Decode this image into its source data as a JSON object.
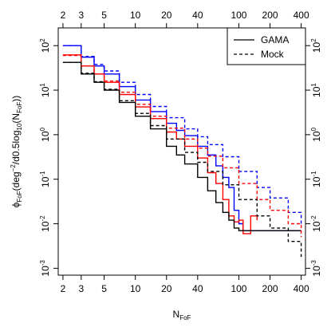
{
  "chart_data": {
    "type": "line",
    "x_scale": "log",
    "y_scale": "log",
    "xlim": [
      1.8,
      440
    ],
    "ylim": [
      0.0007,
      250
    ],
    "x_ticks": [
      2,
      3,
      5,
      10,
      20,
      40,
      100,
      200,
      400
    ],
    "x_tick_labels": [
      "2",
      "3",
      "5",
      "10",
      "20",
      "40",
      "100",
      "200",
      "400"
    ],
    "top_x_ticks": [
      2,
      3,
      5,
      10,
      20,
      40,
      100,
      200,
      400
    ],
    "top_x_tick_labels": [
      "2",
      "3",
      "5",
      "10",
      "20",
      "40",
      "100",
      "200",
      "400"
    ],
    "y_ticks": [
      0.001,
      0.01,
      0.1,
      1,
      10,
      100
    ],
    "y_tick_labels": [
      {
        "base": "10",
        "exp": "-3"
      },
      {
        "base": "10",
        "exp": "-2"
      },
      {
        "base": "10",
        "exp": "-1"
      },
      {
        "base": "10",
        "exp": "0"
      },
      {
        "base": "10",
        "exp": "1"
      },
      {
        "base": "10",
        "exp": "2"
      }
    ],
    "xlabel": {
      "main": "N",
      "sub": "FoF"
    },
    "ylabel": {
      "phi": "ϕ",
      "phi_sub": "FoF",
      "deg": "(deg",
      "deg_sup": "−2",
      "mid": "/d0.5log",
      "log_sub": "10",
      "n": "(N",
      "n_sub": "FoF",
      "end": "))"
    },
    "legend": {
      "placement": "top-right",
      "entries": [
        {
          "label": "GAMA",
          "linestyle": "solid"
        },
        {
          "label": "Mock",
          "linestyle": "dashed"
        }
      ]
    },
    "series": [
      {
        "color": "#0000ff",
        "linestyle": "solid",
        "x": [
          2,
          3,
          4,
          5,
          7,
          10,
          14,
          20,
          25,
          30,
          40,
          50,
          60,
          70,
          80,
          90,
          100,
          110,
          130,
          150,
          400
        ],
        "y": [
          100,
          55,
          35,
          23,
          12,
          6,
          3.3,
          1.8,
          1.25,
          0.95,
          0.55,
          0.35,
          0.2,
          0.11,
          0.065,
          0.02,
          0.01,
          0.007,
          0.007,
          0.007,
          0.007
        ]
      },
      {
        "color": "#ff0000",
        "linestyle": "solid",
        "x": [
          2,
          3,
          4,
          5,
          7,
          10,
          14,
          20,
          25,
          30,
          40,
          50,
          60,
          70,
          80,
          90,
          100,
          110,
          130,
          150
        ],
        "y": [
          62,
          35,
          23,
          15,
          8,
          4.2,
          2.3,
          1.15,
          0.8,
          0.55,
          0.3,
          0.14,
          0.08,
          0.035,
          0.015,
          0.011,
          0.012,
          0.006,
          0.015,
          0.012
        ]
      },
      {
        "color": "#000000",
        "linestyle": "solid",
        "x": [
          2,
          3,
          4,
          5,
          7,
          10,
          14,
          20,
          25,
          30,
          40,
          50,
          60,
          70,
          80,
          90,
          100,
          120,
          150,
          200,
          300,
          400
        ],
        "y": [
          42,
          23,
          15,
          10,
          5.3,
          2.6,
          1.35,
          0.55,
          0.35,
          0.22,
          0.11,
          0.055,
          0.03,
          0.018,
          0.012,
          0.008,
          0.007,
          0.007,
          0.007,
          0.007,
          0.007,
          0.007
        ]
      },
      {
        "color": "#0000ff",
        "linestyle": "dashed",
        "x": [
          2,
          3,
          4,
          5,
          7,
          10,
          14,
          20,
          30,
          40,
          50,
          70,
          100,
          150,
          200,
          300,
          400
        ],
        "y": [
          100,
          57,
          38,
          27,
          15,
          8,
          4.3,
          2.4,
          1.35,
          0.9,
          0.6,
          0.32,
          0.15,
          0.065,
          0.038,
          0.018,
          0.009
        ]
      },
      {
        "color": "#ff0000",
        "linestyle": "dashed",
        "x": [
          2,
          3,
          4,
          5,
          7,
          10,
          14,
          20,
          30,
          40,
          50,
          70,
          100,
          150,
          200,
          300,
          400
        ],
        "y": [
          60,
          35,
          23,
          16,
          9,
          4.8,
          2.6,
          1.4,
          0.8,
          0.5,
          0.33,
          0.18,
          0.08,
          0.035,
          0.02,
          0.01,
          0.005
        ]
      },
      {
        "color": "#000000",
        "linestyle": "dashed",
        "x": [
          2,
          3,
          4,
          5,
          7,
          10,
          14,
          20,
          30,
          40,
          50,
          70,
          100,
          150,
          200,
          300,
          400
        ],
        "y": [
          42,
          24,
          15.5,
          10.5,
          5.8,
          3,
          1.6,
          0.8,
          0.4,
          0.24,
          0.15,
          0.075,
          0.035,
          0.015,
          0.008,
          0.004,
          0.0018
        ]
      }
    ]
  }
}
